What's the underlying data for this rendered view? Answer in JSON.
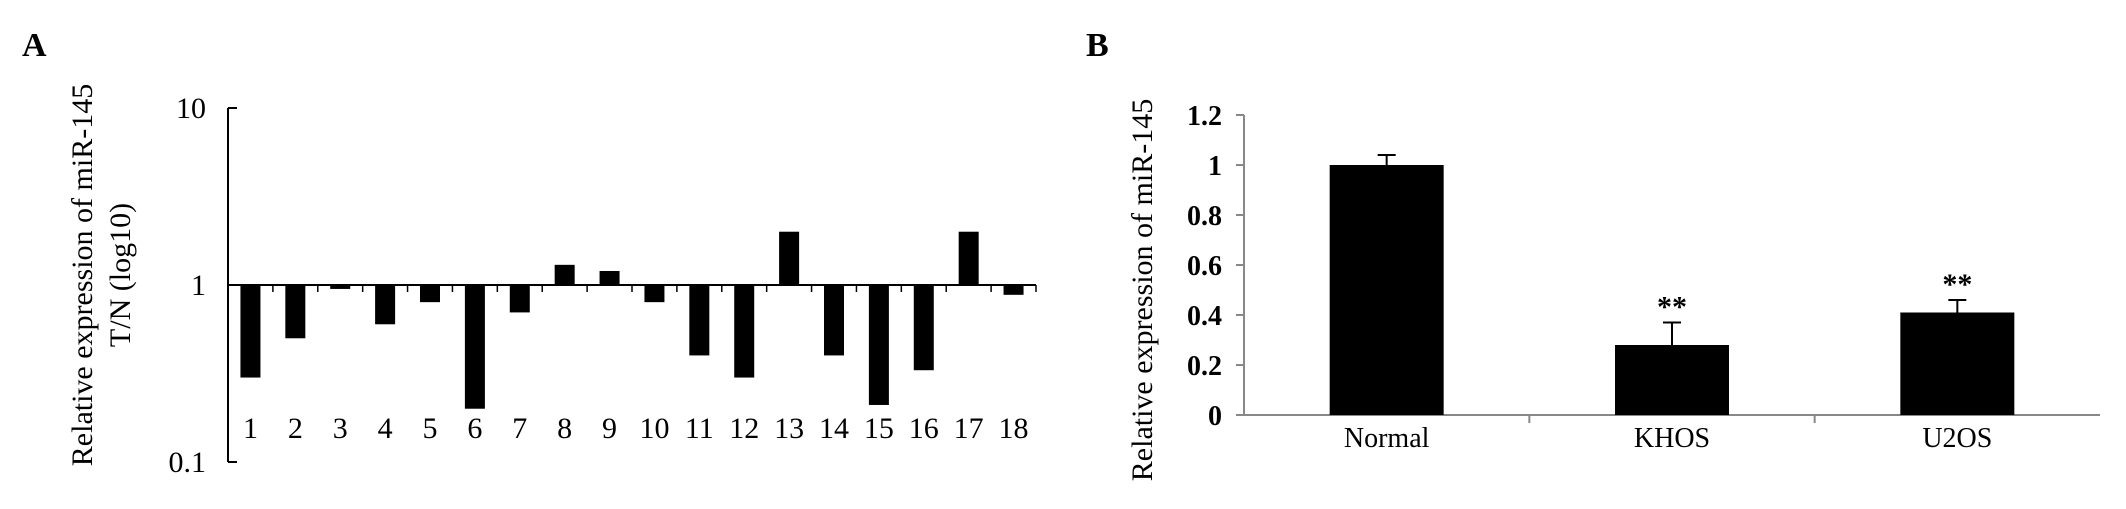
{
  "panels": {
    "a_label": "A",
    "b_label": "B"
  },
  "chart_data": [
    {
      "type": "bar",
      "panel": "A",
      "yscale": "log10",
      "baseline": 1,
      "ylim": [
        0.1,
        10
      ],
      "yticks": [
        {
          "value": 10,
          "label": "10"
        },
        {
          "value": 1,
          "label": "1"
        },
        {
          "value": 0.1,
          "label": "0.1"
        }
      ],
      "ylabel": [
        "Relative expression of miR-145",
        "T/N (log10)"
      ],
      "categories": [
        "1",
        "2",
        "3",
        "4",
        "5",
        "6",
        "7",
        "8",
        "9",
        "10",
        "11",
        "12",
        "13",
        "14",
        "15",
        "16",
        "17",
        "18"
      ],
      "values": [
        0.3,
        0.5,
        0.95,
        0.6,
        0.8,
        0.2,
        0.7,
        1.3,
        1.2,
        0.8,
        0.4,
        0.3,
        2.0,
        0.4,
        0.21,
        0.33,
        2.0,
        0.88
      ],
      "colors": {
        "bar": "#000000",
        "axis": "#000000"
      }
    },
    {
      "type": "bar",
      "panel": "B",
      "ylim": [
        0,
        1.2
      ],
      "yticks": [
        {
          "value": 0,
          "label": "0"
        },
        {
          "value": 0.2,
          "label": "0.2"
        },
        {
          "value": 0.4,
          "label": "0.4"
        },
        {
          "value": 0.6,
          "label": "0.6"
        },
        {
          "value": 0.8,
          "label": "0.8"
        },
        {
          "value": 1,
          "label": "1"
        },
        {
          "value": 1.2,
          "label": "1.2"
        }
      ],
      "ylabel": "Relative expression of miR-145",
      "categories": [
        "Normal",
        "KHOS",
        "U2OS"
      ],
      "values": [
        1.0,
        0.28,
        0.41
      ],
      "errors": [
        0.04,
        0.09,
        0.05
      ],
      "annotations": [
        "",
        "**",
        "**"
      ],
      "colors": {
        "bar": "#000000",
        "axis": "#888888"
      }
    }
  ]
}
